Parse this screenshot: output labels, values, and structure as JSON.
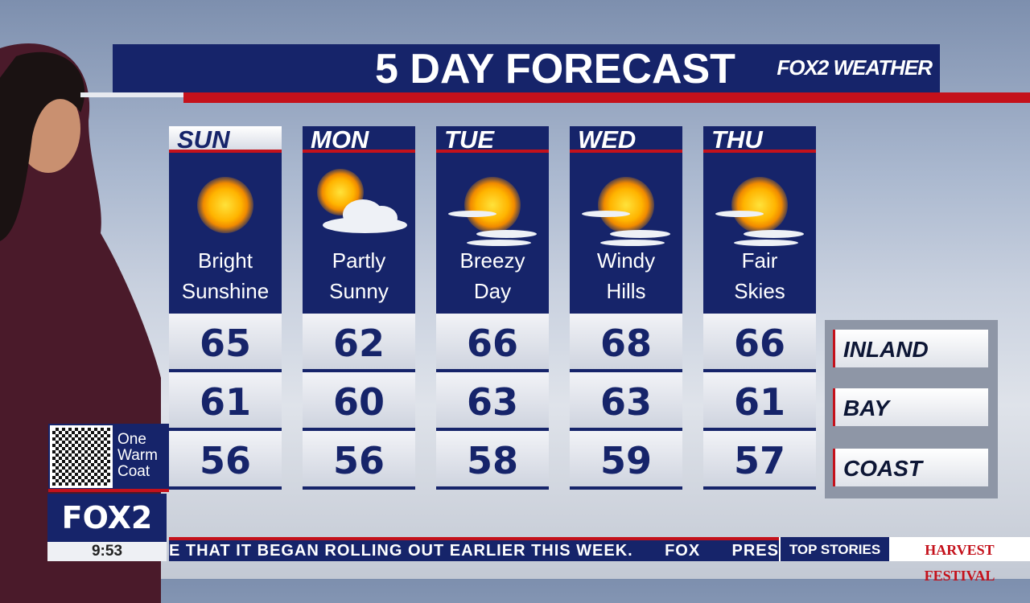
{
  "header": {
    "title": "5 DAY FORECAST",
    "logo": "FOX2 WEATHER"
  },
  "days": [
    {
      "day": "SUN",
      "cond1": "Bright",
      "cond2": "Sunshine",
      "icon": "sun-icon",
      "inland": "65",
      "bay": "61",
      "coast": "56",
      "selected": true
    },
    {
      "day": "MON",
      "cond1": "Partly",
      "cond2": "Sunny",
      "icon": "partly-sunny-icon",
      "inland": "62",
      "bay": "60",
      "coast": "56"
    },
    {
      "day": "TUE",
      "cond1": "Breezy",
      "cond2": "Day",
      "icon": "sun-wind-icon",
      "inland": "66",
      "bay": "63",
      "coast": "58"
    },
    {
      "day": "WED",
      "cond1": "Windy",
      "cond2": "Hills",
      "icon": "sun-wind-icon",
      "inland": "68",
      "bay": "63",
      "coast": "59"
    },
    {
      "day": "THU",
      "cond1": "Fair",
      "cond2": "Skies",
      "icon": "sun-wind-icon",
      "inland": "66",
      "bay": "61",
      "coast": "57"
    }
  ],
  "regions": [
    "INLAND",
    "BAY",
    "COAST"
  ],
  "promo": {
    "line1": "One",
    "line2": "Warm",
    "line3": "Coat"
  },
  "station": {
    "logo": "FOX2",
    "time": "9:53"
  },
  "ticker": {
    "text": "E THAT IT BEGAN ROLLING OUT EARLIER THIS WEEK.      FOX      PRESI",
    "section": "TOP STORIES",
    "sponsor": "HARVEST FESTIVAL"
  },
  "colors": {
    "navy": "#16246a",
    "red": "#c4111b"
  }
}
